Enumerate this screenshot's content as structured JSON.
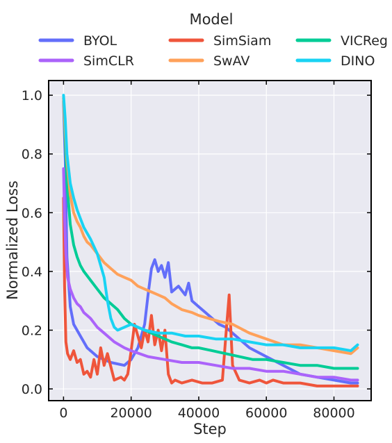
{
  "chart_data": {
    "type": "line",
    "xlabel": "Step",
    "ylabel": "Normalized Loss",
    "xlim": [
      -4400,
      91000
    ],
    "ylim": [
      -0.04,
      1.05
    ],
    "xticks": [
      0,
      20000,
      40000,
      60000,
      80000
    ],
    "yticks": [
      0.0,
      0.2,
      0.4,
      0.6,
      0.8,
      1.0
    ],
    "xtick_labels": [
      "0",
      "20000",
      "40000",
      "60000",
      "80000"
    ],
    "ytick_labels": [
      "0.0",
      "0.2",
      "0.4",
      "0.6",
      "0.8",
      "1.0"
    ],
    "grid": true,
    "legend": {
      "title": "Model",
      "placement": "top-center",
      "ncol": 3
    },
    "series": [
      {
        "name": "BYOL",
        "color": "#636efa",
        "x": [
          0,
          500,
          1000,
          2000,
          3000,
          5000,
          7000,
          10000,
          14000,
          18000,
          20000,
          22000,
          24000,
          25000,
          26000,
          27000,
          28000,
          29000,
          30000,
          31000,
          32000,
          34000,
          36000,
          37000,
          38000,
          40000,
          42000,
          44000,
          46000,
          48000,
          50000,
          55000,
          60000,
          65000,
          70000,
          75000,
          80000,
          85000,
          87000
        ],
        "y": [
          0.98,
          0.78,
          0.45,
          0.28,
          0.22,
          0.18,
          0.14,
          0.11,
          0.09,
          0.08,
          0.1,
          0.14,
          0.22,
          0.32,
          0.41,
          0.44,
          0.4,
          0.42,
          0.38,
          0.43,
          0.33,
          0.35,
          0.32,
          0.36,
          0.3,
          0.28,
          0.26,
          0.24,
          0.22,
          0.21,
          0.19,
          0.14,
          0.11,
          0.08,
          0.05,
          0.04,
          0.03,
          0.02,
          0.02
        ]
      },
      {
        "name": "SimSiam",
        "color": "#ef553b",
        "x": [
          0,
          300,
          700,
          1200,
          2000,
          3000,
          4000,
          5000,
          6000,
          7000,
          8000,
          9000,
          10000,
          11000,
          12000,
          13000,
          15000,
          17000,
          18000,
          19000,
          20000,
          21000,
          22000,
          23000,
          24000,
          25000,
          26000,
          27000,
          28000,
          29000,
          30000,
          31000,
          32000,
          33000,
          35000,
          38000,
          41000,
          44000,
          47000,
          48000,
          49000,
          50000,
          52000,
          55000,
          58000,
          60000,
          62000,
          65000,
          68000,
          70000,
          75000,
          80000,
          85000,
          87000
        ],
        "y": [
          0.65,
          0.35,
          0.16,
          0.12,
          0.1,
          0.13,
          0.09,
          0.1,
          0.05,
          0.06,
          0.04,
          0.1,
          0.05,
          0.14,
          0.08,
          0.12,
          0.03,
          0.04,
          0.03,
          0.05,
          0.13,
          0.22,
          0.18,
          0.14,
          0.2,
          0.16,
          0.25,
          0.15,
          0.2,
          0.13,
          0.2,
          0.05,
          0.02,
          0.03,
          0.02,
          0.03,
          0.02,
          0.02,
          0.03,
          0.18,
          0.32,
          0.08,
          0.03,
          0.02,
          0.03,
          0.02,
          0.03,
          0.02,
          0.02,
          0.02,
          0.01,
          0.01,
          0.01,
          0.01
        ]
      },
      {
        "name": "VICReg",
        "color": "#00cc96",
        "x": [
          0,
          500,
          1000,
          2000,
          3000,
          4000,
          5000,
          6000,
          8000,
          10000,
          12000,
          14000,
          16000,
          18000,
          20000,
          22000,
          24000,
          26000,
          28000,
          30000,
          32000,
          35000,
          38000,
          40000,
          44000,
          48000,
          52000,
          56000,
          60000,
          65000,
          70000,
          75000,
          80000,
          85000,
          87000
        ],
        "y": [
          0.99,
          0.85,
          0.7,
          0.56,
          0.49,
          0.45,
          0.42,
          0.4,
          0.37,
          0.34,
          0.31,
          0.29,
          0.27,
          0.24,
          0.22,
          0.21,
          0.2,
          0.19,
          0.18,
          0.17,
          0.16,
          0.15,
          0.14,
          0.14,
          0.13,
          0.12,
          0.11,
          0.1,
          0.1,
          0.09,
          0.08,
          0.08,
          0.07,
          0.07,
          0.07
        ]
      },
      {
        "name": "SimCLR",
        "color": "#ab63fa",
        "x": [
          0,
          300,
          700,
          1200,
          2000,
          3000,
          4000,
          5000,
          6000,
          8000,
          10000,
          12000,
          15000,
          18000,
          20000,
          25000,
          30000,
          35000,
          40000,
          45000,
          50000,
          55000,
          60000,
          65000,
          70000,
          75000,
          80000,
          85000,
          87000
        ],
        "y": [
          0.75,
          0.58,
          0.46,
          0.38,
          0.34,
          0.31,
          0.29,
          0.28,
          0.26,
          0.24,
          0.21,
          0.19,
          0.16,
          0.14,
          0.13,
          0.11,
          0.1,
          0.09,
          0.09,
          0.08,
          0.07,
          0.07,
          0.06,
          0.06,
          0.05,
          0.04,
          0.04,
          0.03,
          0.03
        ]
      },
      {
        "name": "SwAV",
        "color": "#ffa15a",
        "x": [
          0,
          500,
          1000,
          2000,
          3000,
          4000,
          5000,
          6000,
          7000,
          8000,
          10000,
          12000,
          14000,
          16000,
          18000,
          20000,
          22000,
          24000,
          26000,
          28000,
          30000,
          32000,
          35000,
          38000,
          40000,
          43000,
          46000,
          50000,
          55000,
          60000,
          65000,
          70000,
          75000,
          80000,
          85000,
          87000
        ],
        "y": [
          0.99,
          0.88,
          0.78,
          0.66,
          0.6,
          0.57,
          0.55,
          0.52,
          0.5,
          0.49,
          0.46,
          0.43,
          0.41,
          0.39,
          0.38,
          0.37,
          0.35,
          0.34,
          0.33,
          0.32,
          0.31,
          0.29,
          0.27,
          0.26,
          0.25,
          0.24,
          0.23,
          0.22,
          0.19,
          0.17,
          0.15,
          0.15,
          0.14,
          0.13,
          0.12,
          0.14
        ]
      },
      {
        "name": "DINO",
        "color": "#19d3f3",
        "x": [
          0,
          500,
          1000,
          2000,
          3000,
          4000,
          5000,
          6000,
          8000,
          10000,
          12000,
          13000,
          14000,
          15000,
          16000,
          18000,
          20000,
          24000,
          28000,
          32000,
          36000,
          40000,
          45000,
          50000,
          55000,
          60000,
          65000,
          70000,
          75000,
          80000,
          85000,
          87000
        ],
        "y": [
          1.0,
          0.92,
          0.8,
          0.7,
          0.65,
          0.61,
          0.58,
          0.55,
          0.51,
          0.46,
          0.38,
          0.3,
          0.24,
          0.21,
          0.2,
          0.21,
          0.22,
          0.2,
          0.19,
          0.19,
          0.18,
          0.18,
          0.17,
          0.17,
          0.16,
          0.15,
          0.15,
          0.14,
          0.14,
          0.14,
          0.13,
          0.15
        ]
      }
    ]
  }
}
